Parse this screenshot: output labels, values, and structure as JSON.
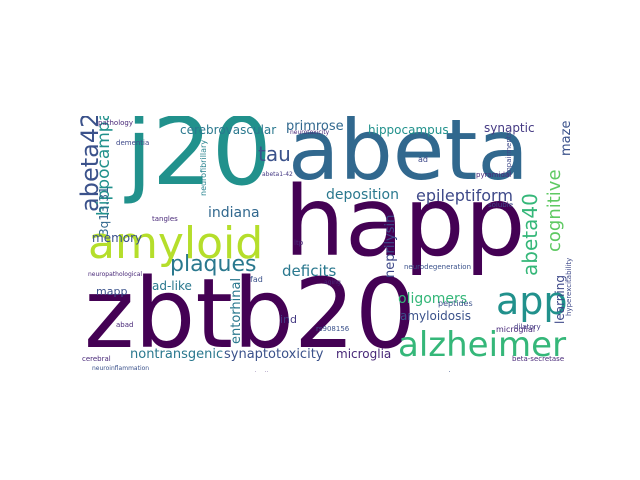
{
  "cloud": {
    "words": [
      {
        "text": "happ",
        "color": "#440154"
      },
      {
        "text": "zbtb20",
        "color": "#440154"
      },
      {
        "text": "abeta",
        "color": "#31688e"
      },
      {
        "text": "j20",
        "color": "#21918c"
      },
      {
        "text": "amyloid",
        "color": "#b5de2b"
      },
      {
        "text": "alzheimer",
        "color": "#35b779"
      },
      {
        "text": "app",
        "color": "#21918c"
      },
      {
        "text": "plaques",
        "color": "#2a788e"
      },
      {
        "text": "tau",
        "color": "#3b528b"
      },
      {
        "text": "abeta42",
        "color": "#3b528b"
      },
      {
        "text": "abeta40",
        "color": "#35b779"
      },
      {
        "text": "cognitive",
        "color": "#5ec962"
      },
      {
        "text": "hippocampal",
        "color": "#21918c"
      },
      {
        "text": "epileptiform",
        "color": "#3e4989"
      },
      {
        "text": "deposition",
        "color": "#2a788e"
      },
      {
        "text": "indiana",
        "color": "#31688e"
      },
      {
        "text": "deficits",
        "color": "#2a788e"
      },
      {
        "text": "oligomers",
        "color": "#35b779"
      },
      {
        "text": "amyloidosis",
        "color": "#3b528b"
      },
      {
        "text": "neprilysin",
        "color": "#3e4989"
      },
      {
        "text": "synaptotoxicity",
        "color": "#3b528b"
      },
      {
        "text": "microglia",
        "color": "#482878"
      },
      {
        "text": "nontransgenic",
        "color": "#2a788e"
      },
      {
        "text": "cerebrovascular",
        "color": "#2a788e"
      },
      {
        "text": "primrose",
        "color": "#31688e"
      },
      {
        "text": "hippocampus",
        "color": "#21918c"
      },
      {
        "text": "synaptic",
        "color": "#443983"
      },
      {
        "text": "maze",
        "color": "#3b528b"
      },
      {
        "text": "memory",
        "color": "#3b528b"
      },
      {
        "text": "ad-like",
        "color": "#2a788e"
      },
      {
        "text": "mapp",
        "color": "#3b528b"
      },
      {
        "text": "entorhinal",
        "color": "#2a788e"
      },
      {
        "text": "learning",
        "color": "#3e4989"
      },
      {
        "text": "ind",
        "color": "#443983"
      },
      {
        "text": "3q13.31",
        "color": "#31688e"
      },
      {
        "text": "pathology",
        "color": "#482878"
      },
      {
        "text": "dementia",
        "color": "#3e4989"
      },
      {
        "text": "neurofibrillary",
        "color": "#26828e"
      },
      {
        "text": "tangles",
        "color": "#482878"
      },
      {
        "text": "peptides",
        "color": "#3b528b"
      },
      {
        "text": "microglial",
        "color": "#482878"
      },
      {
        "text": "beta-secretase",
        "color": "#482878"
      },
      {
        "text": "dilatory",
        "color": "#443983"
      },
      {
        "text": "hyperexcitability",
        "color": "#3e4989"
      },
      {
        "text": "neuroinflammation",
        "color": "#3b528b"
      },
      {
        "text": "abad",
        "color": "#482878"
      },
      {
        "text": "cerebral",
        "color": "#482878"
      },
      {
        "text": "decline",
        "color": "#482878"
      },
      {
        "text": "clearance",
        "color": "#482878"
      },
      {
        "text": "ltp",
        "color": "#482878"
      },
      {
        "text": "rs908156",
        "color": "#3b528b"
      },
      {
        "text": "abeta1-42",
        "color": "#443983"
      },
      {
        "text": "neurodegeneration",
        "color": "#3b528b"
      },
      {
        "text": "neuropathological",
        "color": "#482878"
      },
      {
        "text": "impairments",
        "color": "#3e4989"
      },
      {
        "text": "soluble",
        "color": "#3e4989"
      },
      {
        "text": "neurotoxicity",
        "color": "#482878"
      },
      {
        "text": "pyramidal",
        "color": "#482878"
      },
      {
        "text": "ad",
        "color": "#3e4989"
      },
      {
        "text": "aging",
        "color": "#482878"
      },
      {
        "text": "fad",
        "color": "#3b528b"
      },
      {
        "text": "neuronal",
        "color": "#3b528b"
      }
    ]
  }
}
